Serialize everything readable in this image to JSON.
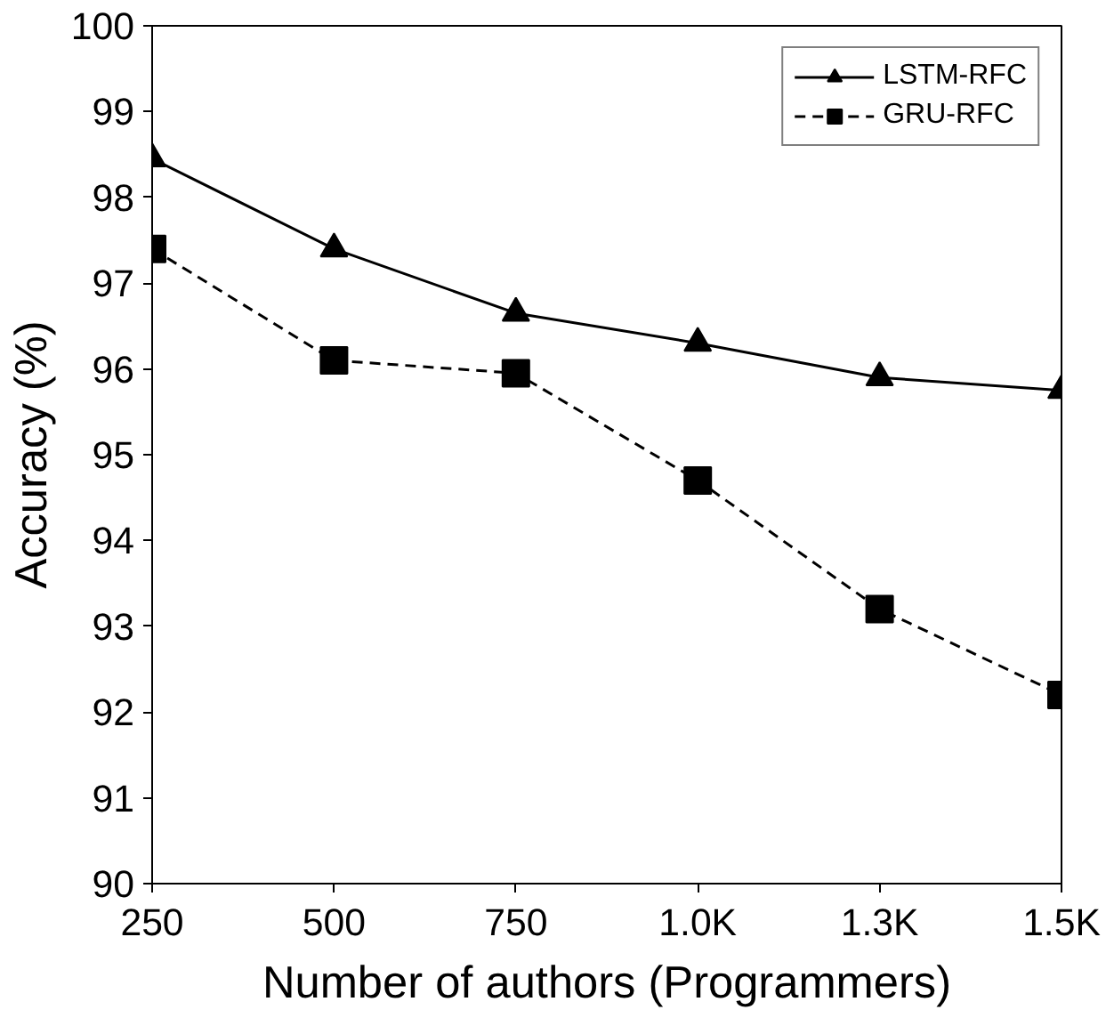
{
  "chart_data": {
    "type": "line",
    "xlabel": "Number of authors (Programmers)",
    "ylabel": "Accuracy (%)",
    "categories": [
      "250",
      "500",
      "750",
      "1.0K",
      "1.3K",
      "1.5K"
    ],
    "ylim": [
      90,
      100
    ],
    "yticks": [
      90,
      91,
      92,
      93,
      94,
      95,
      96,
      97,
      98,
      99,
      100
    ],
    "grid": false,
    "legend": "top right",
    "series": [
      {
        "name": "LSTM-RFC",
        "color": "#000000",
        "marker": "triangle",
        "line_style": "solid",
        "values": [
          98.45,
          97.4,
          96.65,
          96.3,
          95.9,
          95.75
        ]
      },
      {
        "name": "GRU-RFC",
        "color": "#000000",
        "marker": "square",
        "line_style": "dashed",
        "values": [
          97.4,
          96.1,
          95.95,
          94.7,
          93.2,
          92.2
        ]
      }
    ]
  }
}
